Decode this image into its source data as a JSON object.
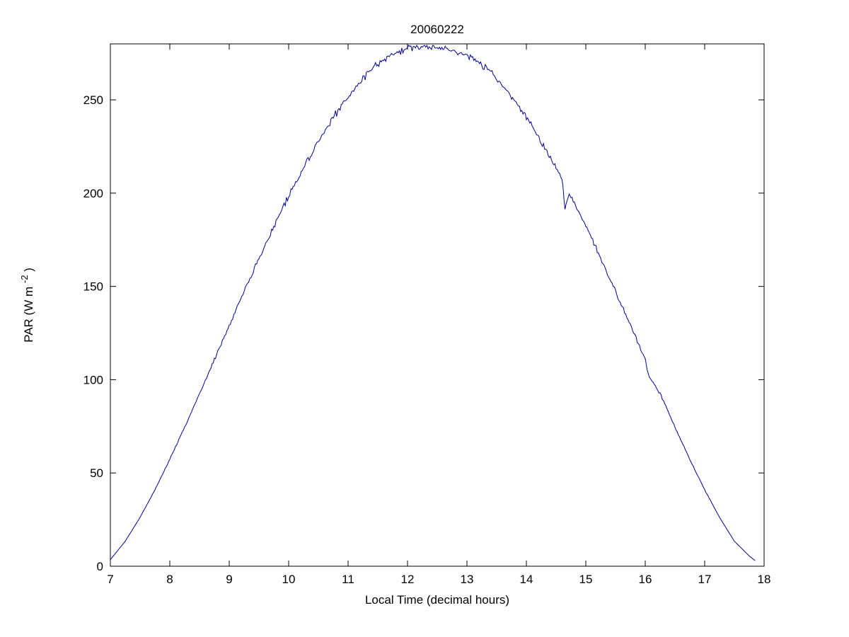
{
  "chart_data": {
    "type": "line",
    "title": "20060222",
    "xlabel": "Local Time (decimal hours)",
    "ylabel": {
      "prefix": "PAR (W m",
      "sup": "-2",
      "suffix": ")"
    },
    "xlim": [
      7,
      18
    ],
    "ylim": [
      0,
      280
    ],
    "xticks": [
      7,
      8,
      9,
      10,
      11,
      12,
      13,
      14,
      15,
      16,
      17,
      18
    ],
    "yticks": [
      0,
      50,
      100,
      150,
      200,
      250
    ],
    "grid": false,
    "legend": null,
    "line_color": "#000099",
    "axis_color": "#000000",
    "background": "#ffffff",
    "noise_amplitude": 2.2,
    "series": [
      {
        "name": "PAR",
        "points": [
          [
            7,
            3.5
          ],
          [
            7.25,
            13.4
          ],
          [
            7.5,
            26.2
          ],
          [
            7.75,
            41
          ],
          [
            8,
            57.3
          ],
          [
            8.25,
            74.6
          ],
          [
            8.5,
            92.5
          ],
          [
            8.75,
            110.7
          ],
          [
            9,
            129.1
          ],
          [
            9.25,
            147.3
          ],
          [
            9.5,
            165.1
          ],
          [
            9.75,
            182.3
          ],
          [
            10,
            198.5
          ],
          [
            10.25,
            213.7
          ],
          [
            10.5,
            227.8
          ],
          [
            10.75,
            240.5
          ],
          [
            11,
            251.8
          ],
          [
            11.25,
            261.4
          ],
          [
            11.5,
            269.4
          ],
          [
            11.75,
            274.8
          ],
          [
            12,
            277.5
          ],
          [
            12.25,
            278.5
          ],
          [
            12.5,
            277.8
          ],
          [
            12.75,
            276.5
          ],
          [
            13,
            274
          ],
          [
            13.25,
            269
          ],
          [
            13.5,
            261.4
          ],
          [
            13.75,
            251.8
          ],
          [
            14,
            240.5
          ],
          [
            14.25,
            227.8
          ],
          [
            14.5,
            213.7
          ],
          [
            14.6,
            207
          ],
          [
            14.65,
            191
          ],
          [
            14.72,
            200
          ],
          [
            14.75,
            198.5
          ],
          [
            15,
            182.3
          ],
          [
            15.25,
            165.1
          ],
          [
            15.5,
            147.3
          ],
          [
            15.75,
            129.1
          ],
          [
            16,
            110.7
          ],
          [
            16.05,
            103
          ],
          [
            16.25,
            92.5
          ],
          [
            16.5,
            74.6
          ],
          [
            16.75,
            57.3
          ],
          [
            17,
            41
          ],
          [
            17.25,
            26.2
          ],
          [
            17.5,
            13.4
          ],
          [
            17.75,
            5.5
          ],
          [
            17.85,
            3
          ]
        ]
      }
    ]
  }
}
